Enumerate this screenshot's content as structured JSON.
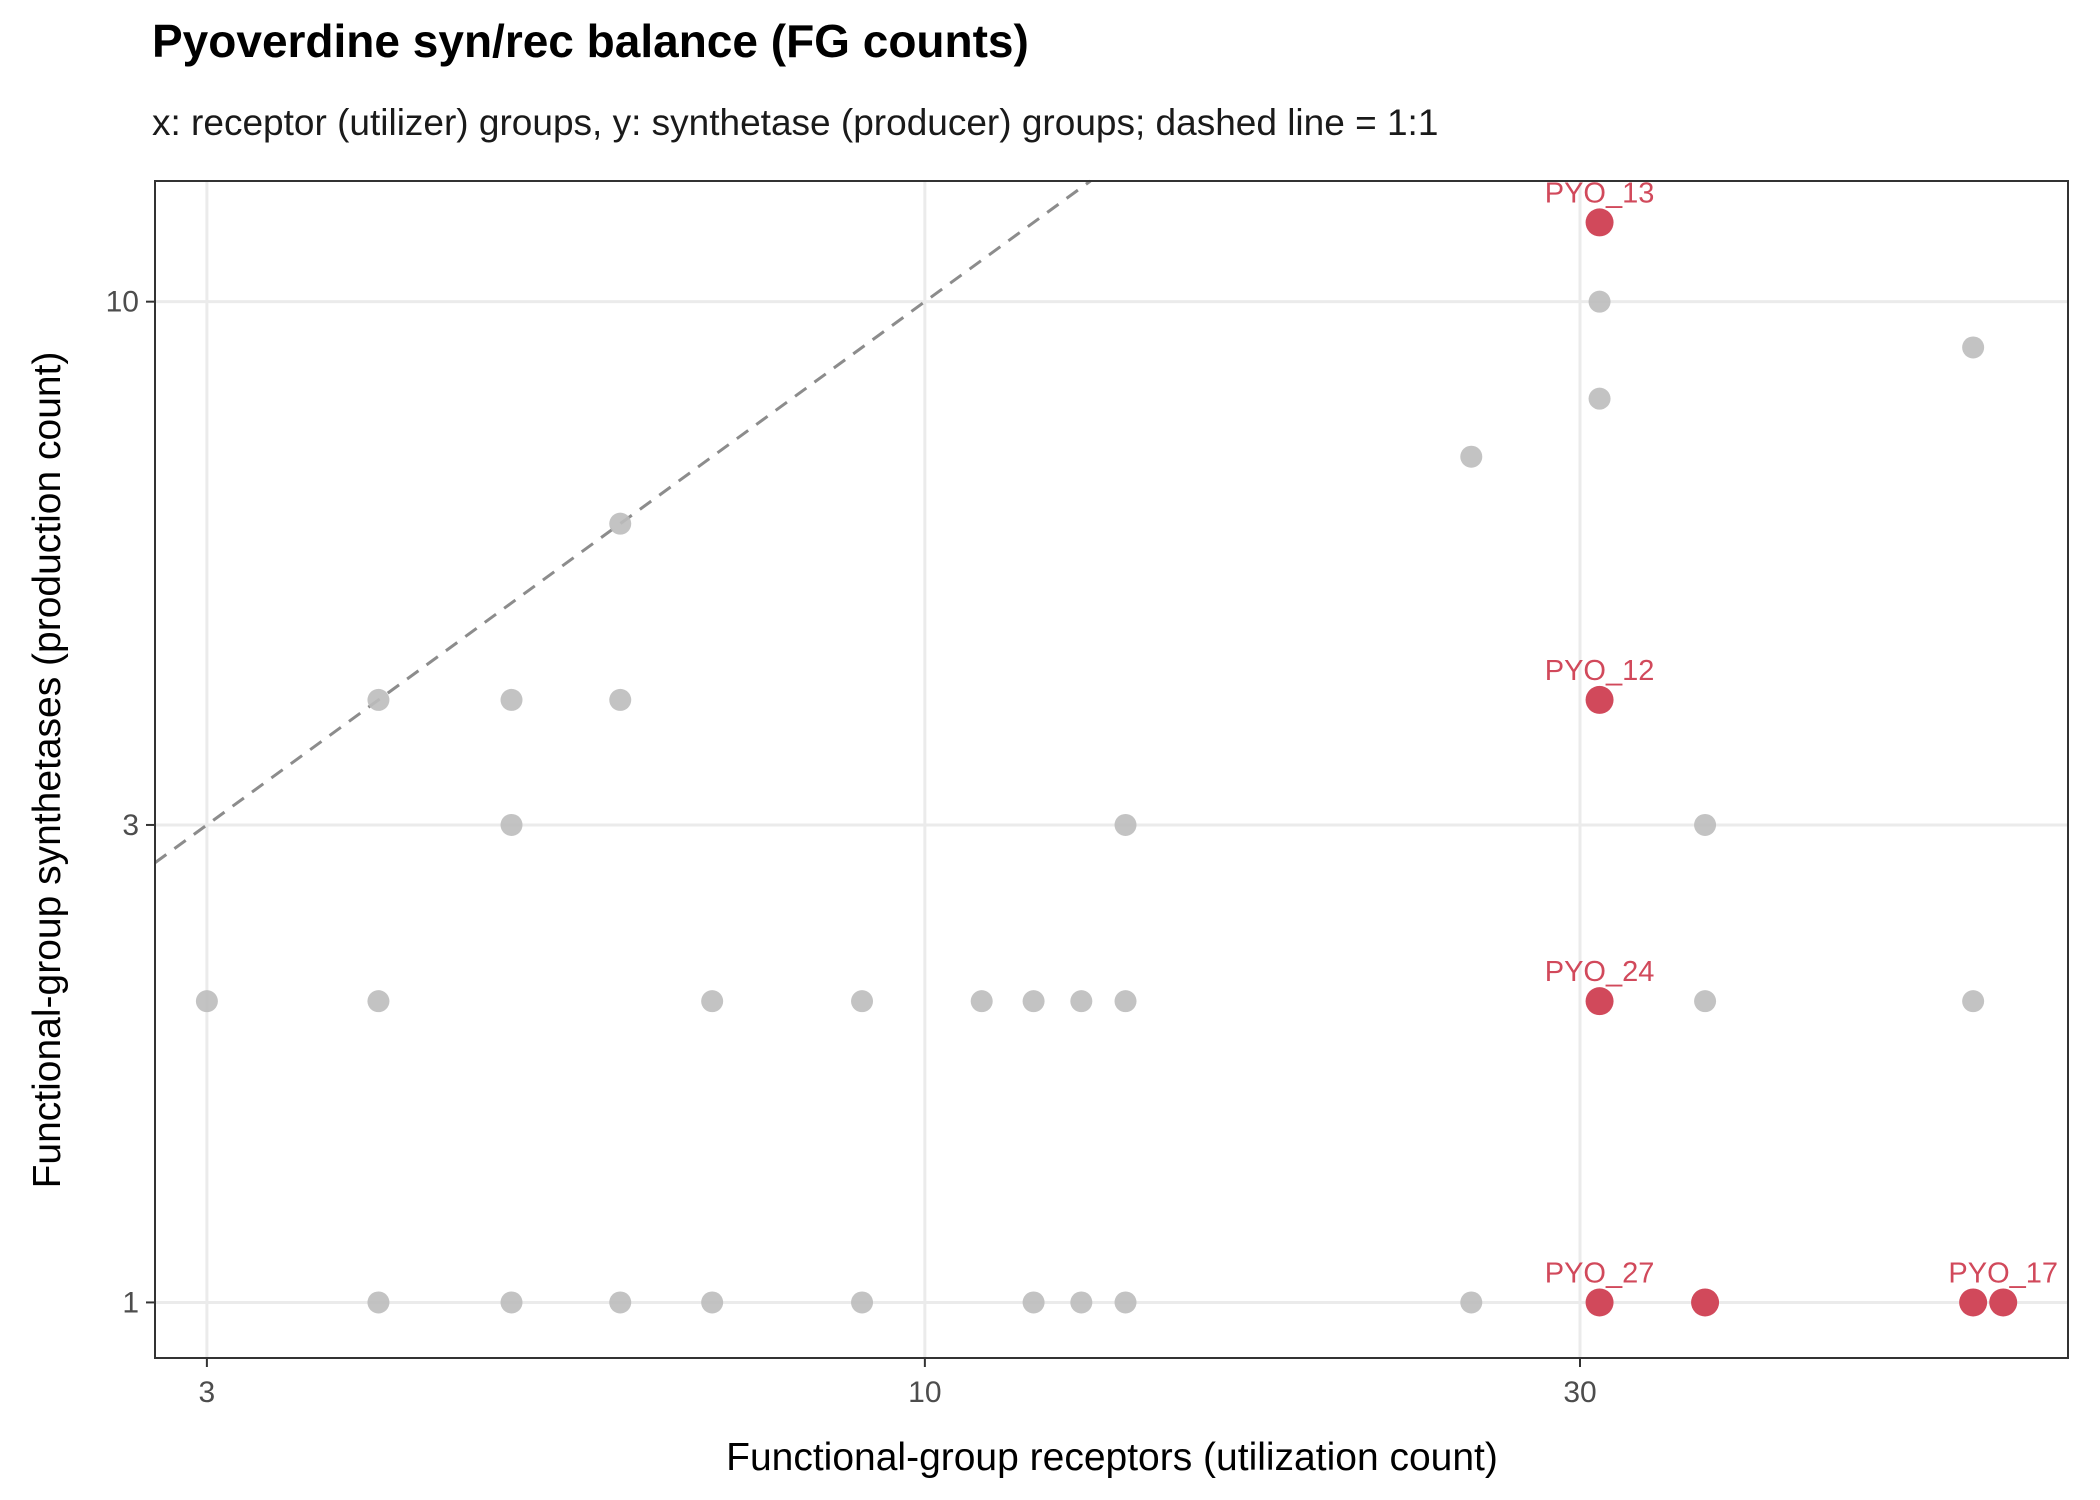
{
  "chart_data": {
    "type": "scatter",
    "title": "Pyoverdine syn/rec balance (FG counts)",
    "subtitle": "x: receptor (utilizer) groups, y: synthetase (producer) groups; dashed line = 1:1",
    "xlabel": "Functional-group receptors (utilization count)",
    "ylabel": "Functional-group synthetases (production count)",
    "x_scale": "log10",
    "y_scale": "log10",
    "xlim": [
      2.75,
      68
    ],
    "ylim": [
      0.88,
      13.2
    ],
    "x_ticks": [
      3,
      10,
      30
    ],
    "x_tick_labels": [
      "3",
      "10",
      "30"
    ],
    "y_ticks": [
      1,
      3,
      10
    ],
    "y_tick_labels": [
      "1",
      "3",
      "10"
    ],
    "reference_line": {
      "style": "dashed",
      "slope": 1,
      "intercept": 0,
      "color": "#8c8c8c"
    },
    "grid": true,
    "colors": {
      "background_points": "#bdbdbd",
      "highlight": "#d1495b",
      "grid": "#ebebeb",
      "panel_border": "#333333"
    },
    "series": [
      {
        "role": "background",
        "points": [
          {
            "x": 3,
            "y": 2
          },
          {
            "x": 4,
            "y": 2
          },
          {
            "x": 4,
            "y": 4
          },
          {
            "x": 4,
            "y": 1
          },
          {
            "x": 5,
            "y": 4
          },
          {
            "x": 5,
            "y": 3
          },
          {
            "x": 5,
            "y": 1
          },
          {
            "x": 6,
            "y": 6
          },
          {
            "x": 6,
            "y": 4
          },
          {
            "x": 6,
            "y": 1
          },
          {
            "x": 7,
            "y": 2
          },
          {
            "x": 7,
            "y": 1
          },
          {
            "x": 9,
            "y": 2
          },
          {
            "x": 9,
            "y": 1
          },
          {
            "x": 11,
            "y": 2
          },
          {
            "x": 12,
            "y": 2
          },
          {
            "x": 12,
            "y": 1
          },
          {
            "x": 13,
            "y": 2
          },
          {
            "x": 13,
            "y": 1
          },
          {
            "x": 14,
            "y": 3
          },
          {
            "x": 14,
            "y": 2
          },
          {
            "x": 14,
            "y": 1
          },
          {
            "x": 25,
            "y": 7
          },
          {
            "x": 25,
            "y": 1
          },
          {
            "x": 31,
            "y": 10
          },
          {
            "x": 31,
            "y": 8
          },
          {
            "x": 37,
            "y": 3
          },
          {
            "x": 37,
            "y": 2
          },
          {
            "x": 58,
            "y": 9
          },
          {
            "x": 58,
            "y": 2
          }
        ]
      },
      {
        "role": "highlight",
        "points": [
          {
            "x": 31,
            "y": 12,
            "label": "PYO_13"
          },
          {
            "x": 31,
            "y": 4,
            "label": "PYO_12"
          },
          {
            "x": 31,
            "y": 2,
            "label": "PYO_24"
          },
          {
            "x": 31,
            "y": 1,
            "label": "PYO_27"
          },
          {
            "x": 37,
            "y": 1
          },
          {
            "x": 58,
            "y": 1
          },
          {
            "x": 61,
            "y": 1,
            "label": "PYO_17"
          }
        ]
      }
    ]
  }
}
